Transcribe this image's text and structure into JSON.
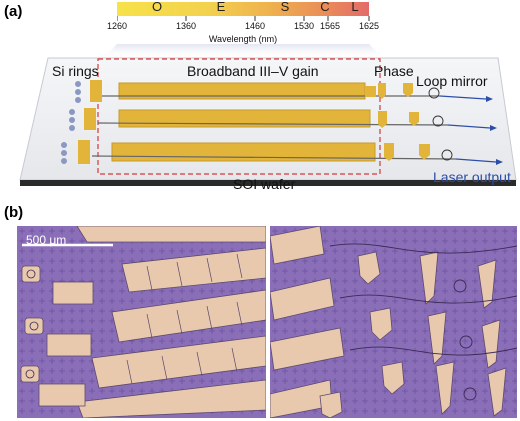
{
  "panel_a": {
    "label": "(a)",
    "wavelength_axis": {
      "title": "Wavelength (nm)",
      "ticks": [
        "1260",
        "1360",
        "1460",
        "1530",
        "1565",
        "1625"
      ],
      "bands": [
        "O",
        "E",
        "S",
        "C",
        "L"
      ]
    },
    "labels": {
      "si_rings": "Si rings",
      "gain": "Broadband III–V gain",
      "phase": "Phase",
      "loop_mirror": "Loop mirror",
      "wafer": "SOI wafer",
      "output": "Laser output"
    },
    "colors": {
      "gain_gold": "#e2b53a",
      "dashed_red": "#d23a3a",
      "output_blue": "#2c4ea6",
      "spectrum_start": "#f7e24a",
      "spectrum_end": "#e46a6a"
    }
  },
  "panel_b": {
    "label": "(b)",
    "scale_bar": "500 μm",
    "colors": {
      "substrate_purple": "#8a6fb8",
      "pad_peach": "#e9c9ad"
    }
  }
}
